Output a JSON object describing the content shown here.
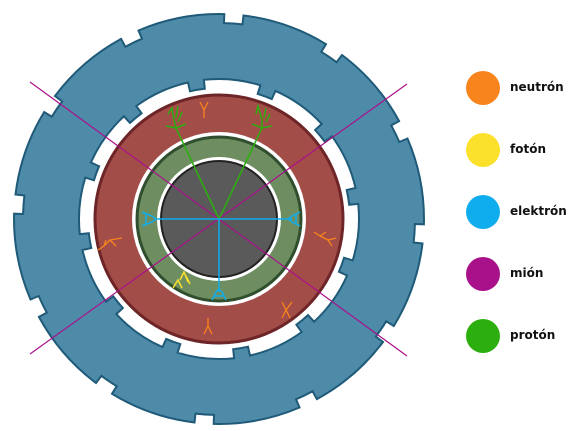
{
  "colors": {
    "outer_ring": "#4E8BA8",
    "outer_ring_stroke": "#1F5A78",
    "red_ring": "#A34D48",
    "red_ring_stroke": "#6E2528",
    "green_ring": "#6E8E62",
    "green_ring_stroke": "#2F4F2E",
    "core": "#5A5A5A",
    "core_stroke": "#222222",
    "gap": "#FFFFFF"
  },
  "legend": [
    {
      "label": "neutrón",
      "color": "#F7841C",
      "icon": "orange-circle-icon"
    },
    {
      "label": "fotón",
      "color": "#FBE12C",
      "icon": "yellow-circle-icon"
    },
    {
      "label": "elektrón",
      "color": "#10ADEE",
      "icon": "blue-circle-icon"
    },
    {
      "label": "mión",
      "color": "#A9118B",
      "icon": "purple-circle-icon"
    },
    {
      "label": "protón",
      "color": "#2DAE0F",
      "icon": "green-circle-icon"
    }
  ]
}
